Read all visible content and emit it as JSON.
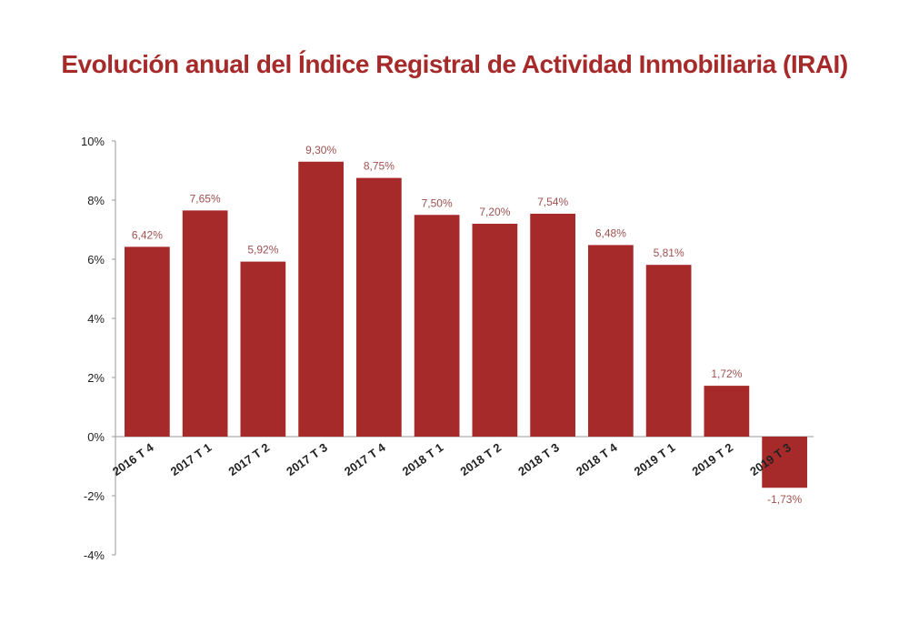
{
  "title": "Evolución anual del Índice Registral de Actividad Inmobiliaria (IRAI)",
  "chart_data": {
    "type": "bar",
    "title": "Evolución anual del Índice Registral de Actividad Inmobiliaria (IRAI)",
    "xlabel": "",
    "ylabel": "",
    "ylim": [
      -4,
      10
    ],
    "yticks": [
      10,
      8,
      6,
      4,
      2,
      0,
      -2,
      -4
    ],
    "ytick_labels": [
      "10%",
      "8%",
      "6%",
      "4%",
      "2%",
      "0%",
      "-2%",
      "-4%"
    ],
    "grid": false,
    "bar_color": "#a72a2a",
    "label_color": "#a05050",
    "categories": [
      "2016 T 4",
      "2017 T 1",
      "2017 T 2",
      "2017 T 3",
      "2017 T 4",
      "2018 T 1",
      "2018 T 2",
      "2018 T 3",
      "2018 T 4",
      "2019 T 1",
      "2019 T 2",
      "2019 T 3"
    ],
    "values": [
      6.42,
      7.65,
      5.92,
      9.3,
      8.75,
      7.5,
      7.2,
      7.54,
      6.48,
      5.81,
      1.72,
      -1.73
    ],
    "data_labels": [
      "6,42%",
      "7,65%",
      "5,92%",
      "9,30%",
      "8,75%",
      "7,50%",
      "7,20%",
      "7,54%",
      "6,48%",
      "5,81%",
      "1,72%",
      "-1,73%"
    ]
  }
}
